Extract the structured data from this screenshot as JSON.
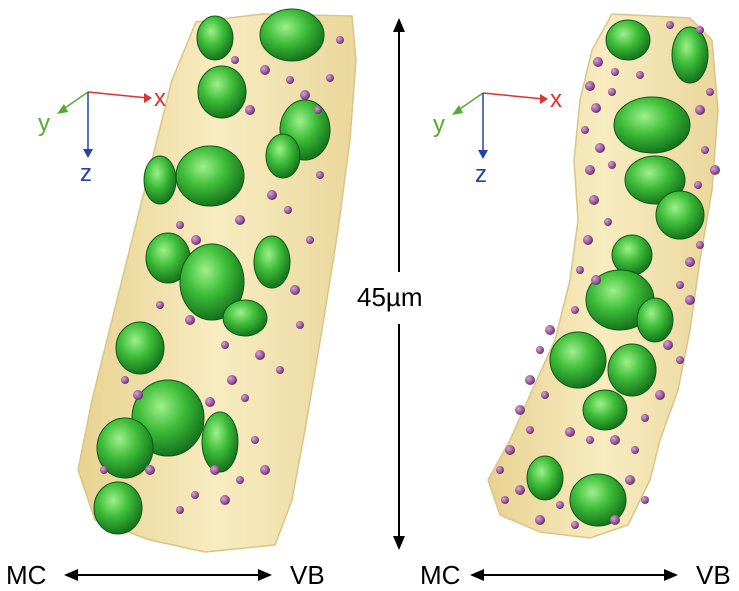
{
  "panels": [
    {
      "axes": {
        "x": "x",
        "y": "y",
        "z": "z"
      },
      "bottom_left_label": "MC",
      "bottom_right_label": "VB"
    },
    {
      "axes": {
        "x": "x",
        "y": "y",
        "z": "z"
      },
      "bottom_left_label": "MC",
      "bottom_right_label": "VB"
    }
  ],
  "scale_bar": {
    "label": "45µm"
  },
  "colors": {
    "cell_body": "#f3dfa0",
    "chloroplast": "#2fae2f",
    "particles": "#8a4f8f",
    "axis_x": "#e03030",
    "axis_y": "#55aa33",
    "axis_z": "#2244aa"
  }
}
